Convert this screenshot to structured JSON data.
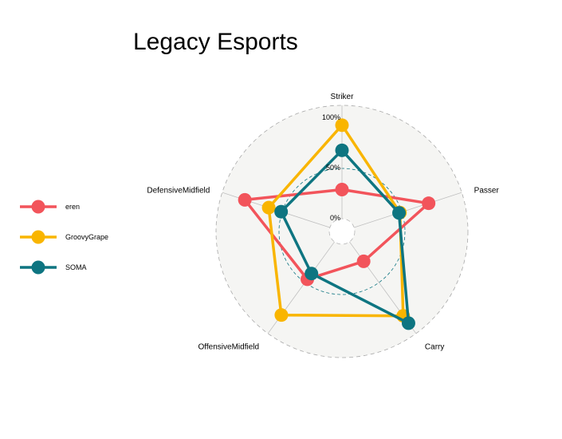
{
  "chart_data": {
    "type": "radar",
    "title": "Legacy Esports",
    "axes": [
      "Striker",
      "Passer",
      "Carry",
      "OffensiveMidfield",
      "DefensiveMidfield"
    ],
    "grid_labels": [
      "0%",
      "50%",
      "100%"
    ],
    "range": [
      0,
      1
    ],
    "legend_position": "left",
    "series": [
      {
        "name": "eren",
        "color": "#F2545B",
        "values": [
          0.29,
          0.78,
          0.24,
          0.46,
          0.89
        ]
      },
      {
        "name": "GroovyGrape",
        "color": "#F9B500",
        "values": [
          0.93,
          0.48,
          0.91,
          0.9,
          0.64
        ]
      },
      {
        "name": "SOMA",
        "color": "#0E7581",
        "values": [
          0.68,
          0.47,
          1.0,
          0.39,
          0.51
        ]
      }
    ]
  }
}
